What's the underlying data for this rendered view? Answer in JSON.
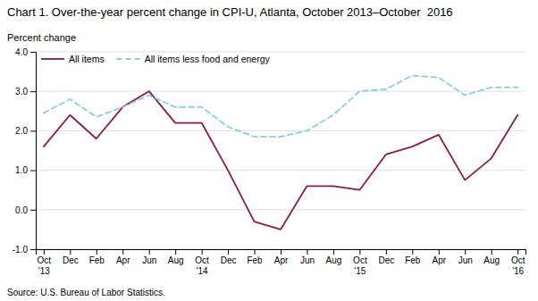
{
  "chart_data": {
    "type": "line",
    "title": "Chart 1. Over-the-year percent change in CPI-U, Atlanta, October 2013–October  2016",
    "y_label": "Percent change",
    "annotations": [
      "Source: U.S. Bureau of Labor Statistics."
    ],
    "categories": [
      "Oct\n'13",
      "Dec",
      "Feb",
      "Apr",
      "Jun",
      "Aug",
      "Oct\n'14",
      "Dec",
      "Feb",
      "Apr",
      "Jun",
      "Aug",
      "Oct\n'15",
      "Dec",
      "Feb",
      "Apr",
      "Jun",
      "Aug",
      "Oct\n'16"
    ],
    "series": [
      {
        "name": "All items",
        "color": "#8B1A4A",
        "line_style": "solid",
        "values": [
          1.6,
          2.4,
          1.8,
          2.6,
          3.0,
          2.2,
          2.2,
          1.0,
          -0.3,
          -0.5,
          0.6,
          0.6,
          0.5,
          1.4,
          1.6,
          1.9,
          0.75,
          1.3,
          2.4
        ]
      },
      {
        "name": "All items less food and energy",
        "color": "#87CEEB",
        "line_style": "dashed",
        "values": [
          2.45,
          2.8,
          2.35,
          2.6,
          2.9,
          2.6,
          2.6,
          2.1,
          1.85,
          1.85,
          2.0,
          2.4,
          3.0,
          3.05,
          3.4,
          3.35,
          2.9,
          3.1,
          3.1
        ]
      }
    ],
    "ylim": [
      -1.0,
      4.0
    ],
    "yticks": [
      {
        "value": -1.0,
        "label": "-1.0"
      },
      {
        "value": 0.0,
        "label": "0.0"
      },
      {
        "value": 1.0,
        "label": "1.0"
      },
      {
        "value": 2.0,
        "label": "2.0"
      },
      {
        "value": 3.0,
        "label": "3.0"
      },
      {
        "value": 4.0,
        "label": "4.0"
      }
    ],
    "grid": true,
    "legend": "upper left"
  }
}
